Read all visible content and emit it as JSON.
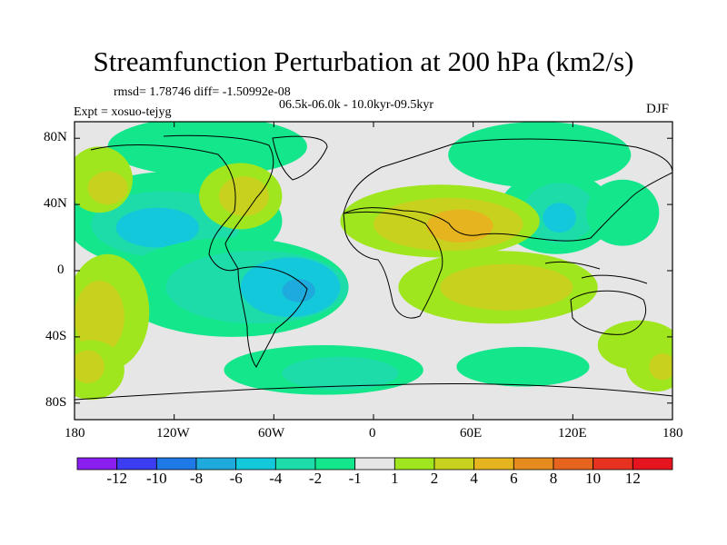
{
  "chart_data": {
    "type": "contour-map",
    "title": "Streamfunction Perturbation at 200 hPa (km2/s)",
    "stats_line": "rmsd= 1.78746  diff= -1.50992e-08",
    "period_line": "06.5k-06.0k - 10.0kyr-09.5kyr",
    "experiment_line": "Expt = xosuo-tejyg",
    "season": "DJF",
    "x_axis": {
      "range": [
        -180,
        180
      ],
      "ticks": [
        -180,
        -120,
        -60,
        0,
        60,
        120,
        180
      ],
      "tick_labels": [
        "180",
        "120W",
        "60W",
        "0",
        "60E",
        "120E",
        "180"
      ]
    },
    "y_axis": {
      "range": [
        -90,
        90
      ],
      "ticks": [
        80,
        40,
        0,
        -40,
        -80
      ],
      "tick_labels": [
        "80N",
        "40N",
        "0",
        "40S",
        "80S"
      ]
    },
    "colorbar": {
      "labels": [
        "-12",
        "-10",
        "-8",
        "-6",
        "-4",
        "-2",
        "-1",
        "1",
        "2",
        "4",
        "6",
        "8",
        "10",
        "12"
      ],
      "colors": [
        "#8a1ef0",
        "#3c3cf0",
        "#1e78e6",
        "#1eaadc",
        "#14c8dc",
        "#1edcaa",
        "#14e68c",
        "#e6e6e6",
        "#a0e61e",
        "#c8d21e",
        "#e6b41e",
        "#e68c1e",
        "#e6641e",
        "#e6321e",
        "#e6141e"
      ]
    },
    "regions": [
      {
        "level": "-1",
        "lon": -120,
        "lat": 30,
        "rx": 65,
        "ry": 30
      },
      {
        "level": "-2",
        "lon": -125,
        "lat": 28,
        "rx": 45,
        "ry": 20
      },
      {
        "level": "-4",
        "lon": -130,
        "lat": 26,
        "rx": 25,
        "ry": 12
      },
      {
        "level": "-1",
        "lon": -85,
        "lat": -10,
        "rx": 70,
        "ry": 30
      },
      {
        "level": "-2",
        "lon": -70,
        "lat": -10,
        "rx": 55,
        "ry": 22
      },
      {
        "level": "-4",
        "lon": -50,
        "lat": -10,
        "rx": 30,
        "ry": 18
      },
      {
        "level": "-6",
        "lon": -45,
        "lat": -12,
        "rx": 10,
        "ry": 7
      },
      {
        "level": "-1",
        "lon": -100,
        "lat": 75,
        "rx": 60,
        "ry": 18
      },
      {
        "level": "-1",
        "lon": 100,
        "lat": 70,
        "rx": 55,
        "ry": 20
      },
      {
        "level": "-1",
        "lon": 110,
        "lat": 35,
        "rx": 35,
        "ry": 25
      },
      {
        "level": "-2",
        "lon": 112,
        "lat": 35,
        "rx": 22,
        "ry": 18
      },
      {
        "level": "-4",
        "lon": 112,
        "lat": 32,
        "rx": 10,
        "ry": 9
      },
      {
        "level": "-1",
        "lon": 150,
        "lat": 35,
        "rx": 22,
        "ry": 20
      },
      {
        "level": "-1",
        "lon": -30,
        "lat": -60,
        "rx": 60,
        "ry": 15
      },
      {
        "level": "-2",
        "lon": -20,
        "lat": -62,
        "rx": 35,
        "ry": 10
      },
      {
        "level": "-1",
        "lon": 90,
        "lat": -58,
        "rx": 40,
        "ry": 12
      },
      {
        "level": "1",
        "lon": -165,
        "lat": 55,
        "rx": 20,
        "ry": 20
      },
      {
        "level": "2",
        "lon": -160,
        "lat": 50,
        "rx": 12,
        "ry": 10
      },
      {
        "level": "1",
        "lon": -80,
        "lat": 45,
        "rx": 25,
        "ry": 20
      },
      {
        "level": "2",
        "lon": -78,
        "lat": 45,
        "rx": 15,
        "ry": 12
      },
      {
        "level": "1",
        "lon": 40,
        "lat": 30,
        "rx": 60,
        "ry": 22
      },
      {
        "level": "2",
        "lon": 45,
        "lat": 28,
        "rx": 45,
        "ry": 16
      },
      {
        "level": "4",
        "lon": 52,
        "lat": 27,
        "rx": 20,
        "ry": 10
      },
      {
        "level": "1",
        "lon": 75,
        "lat": -10,
        "rx": 60,
        "ry": 22
      },
      {
        "level": "2",
        "lon": 80,
        "lat": -10,
        "rx": 40,
        "ry": 14
      },
      {
        "level": "1",
        "lon": -160,
        "lat": -25,
        "rx": 25,
        "ry": 35
      },
      {
        "level": "2",
        "lon": -165,
        "lat": -28,
        "rx": 15,
        "ry": 22
      },
      {
        "level": "1",
        "lon": 160,
        "lat": -45,
        "rx": 25,
        "ry": 15
      },
      {
        "level": "1",
        "lon": -170,
        "lat": -60,
        "rx": 20,
        "ry": 18
      },
      {
        "level": "2",
        "lon": -172,
        "lat": -58,
        "rx": 10,
        "ry": 10
      },
      {
        "level": "1",
        "lon": 170,
        "lat": -58,
        "rx": 18,
        "ry": 15
      },
      {
        "level": "2",
        "lon": 174,
        "lat": -58,
        "rx": 8,
        "ry": 8
      }
    ]
  }
}
